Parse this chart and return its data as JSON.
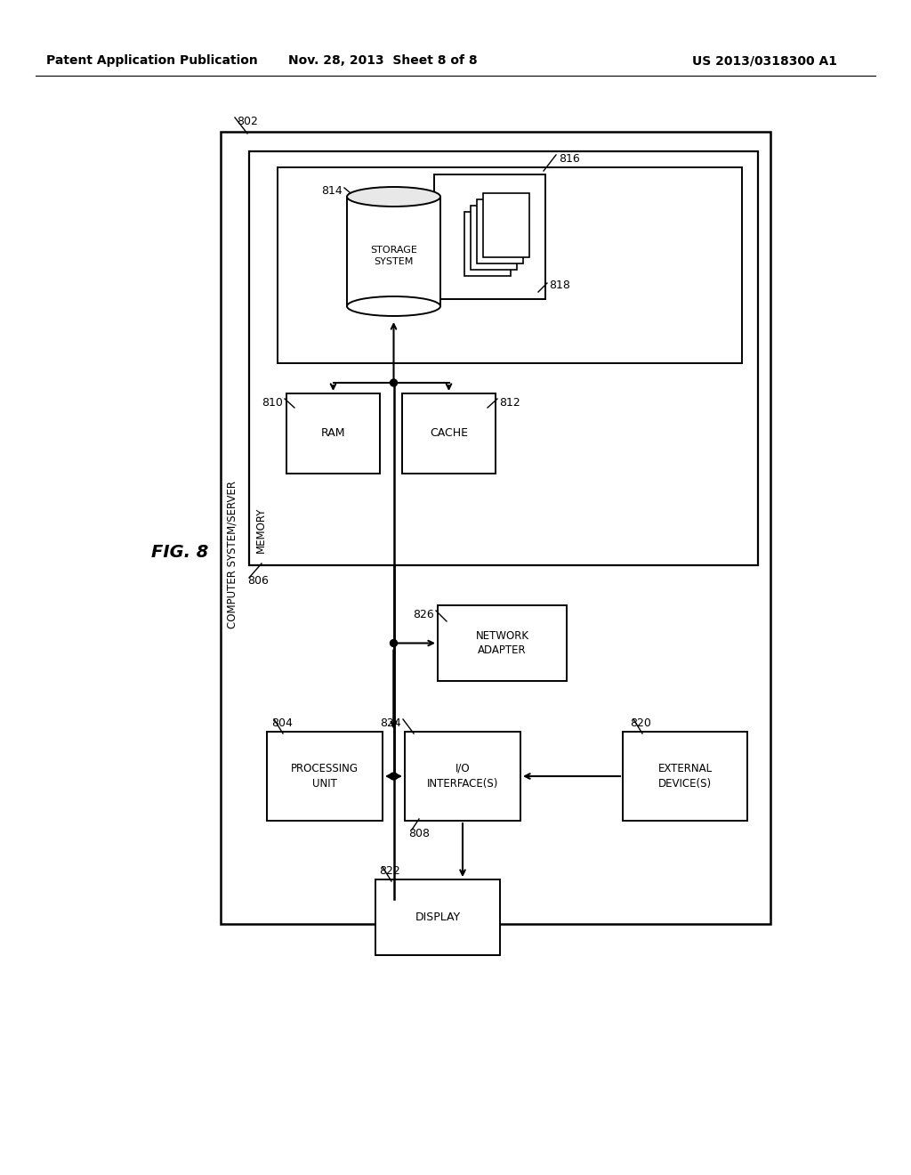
{
  "bg_color": "#ffffff",
  "header_left": "Patent Application Publication",
  "header_mid": "Nov. 28, 2013  Sheet 8 of 8",
  "header_right": "US 2013/0318300 A1",
  "fig_label": "FIG. 8",
  "outer_box_label": "802",
  "outer_box_sublabel": "COMPUTER SYSTEM/SERVER",
  "memory_box_label": "806",
  "memory_box_sublabel": "MEMORY",
  "inner_storage_box_label": "816",
  "storage_system_label": "814",
  "storage_system_text": "STORAGE\nSYSTEM",
  "files_label": "818",
  "ram_label": "810",
  "ram_text": "RAM",
  "cache_label": "812",
  "cache_text": "CACHE",
  "network_adapter_label": "826",
  "network_adapter_text": "NETWORK\nADAPTER",
  "processing_unit_label": "804",
  "processing_unit_text": "PROCESSING\nUNIT",
  "io_interface_label": "824",
  "io_interface_label2": "808",
  "io_interface_text": "I/O\nINTERFACE(S)",
  "external_device_label": "820",
  "external_device_text": "EXTERNAL\nDEVICE(S)",
  "display_label": "822",
  "display_text": "DISPLAY"
}
